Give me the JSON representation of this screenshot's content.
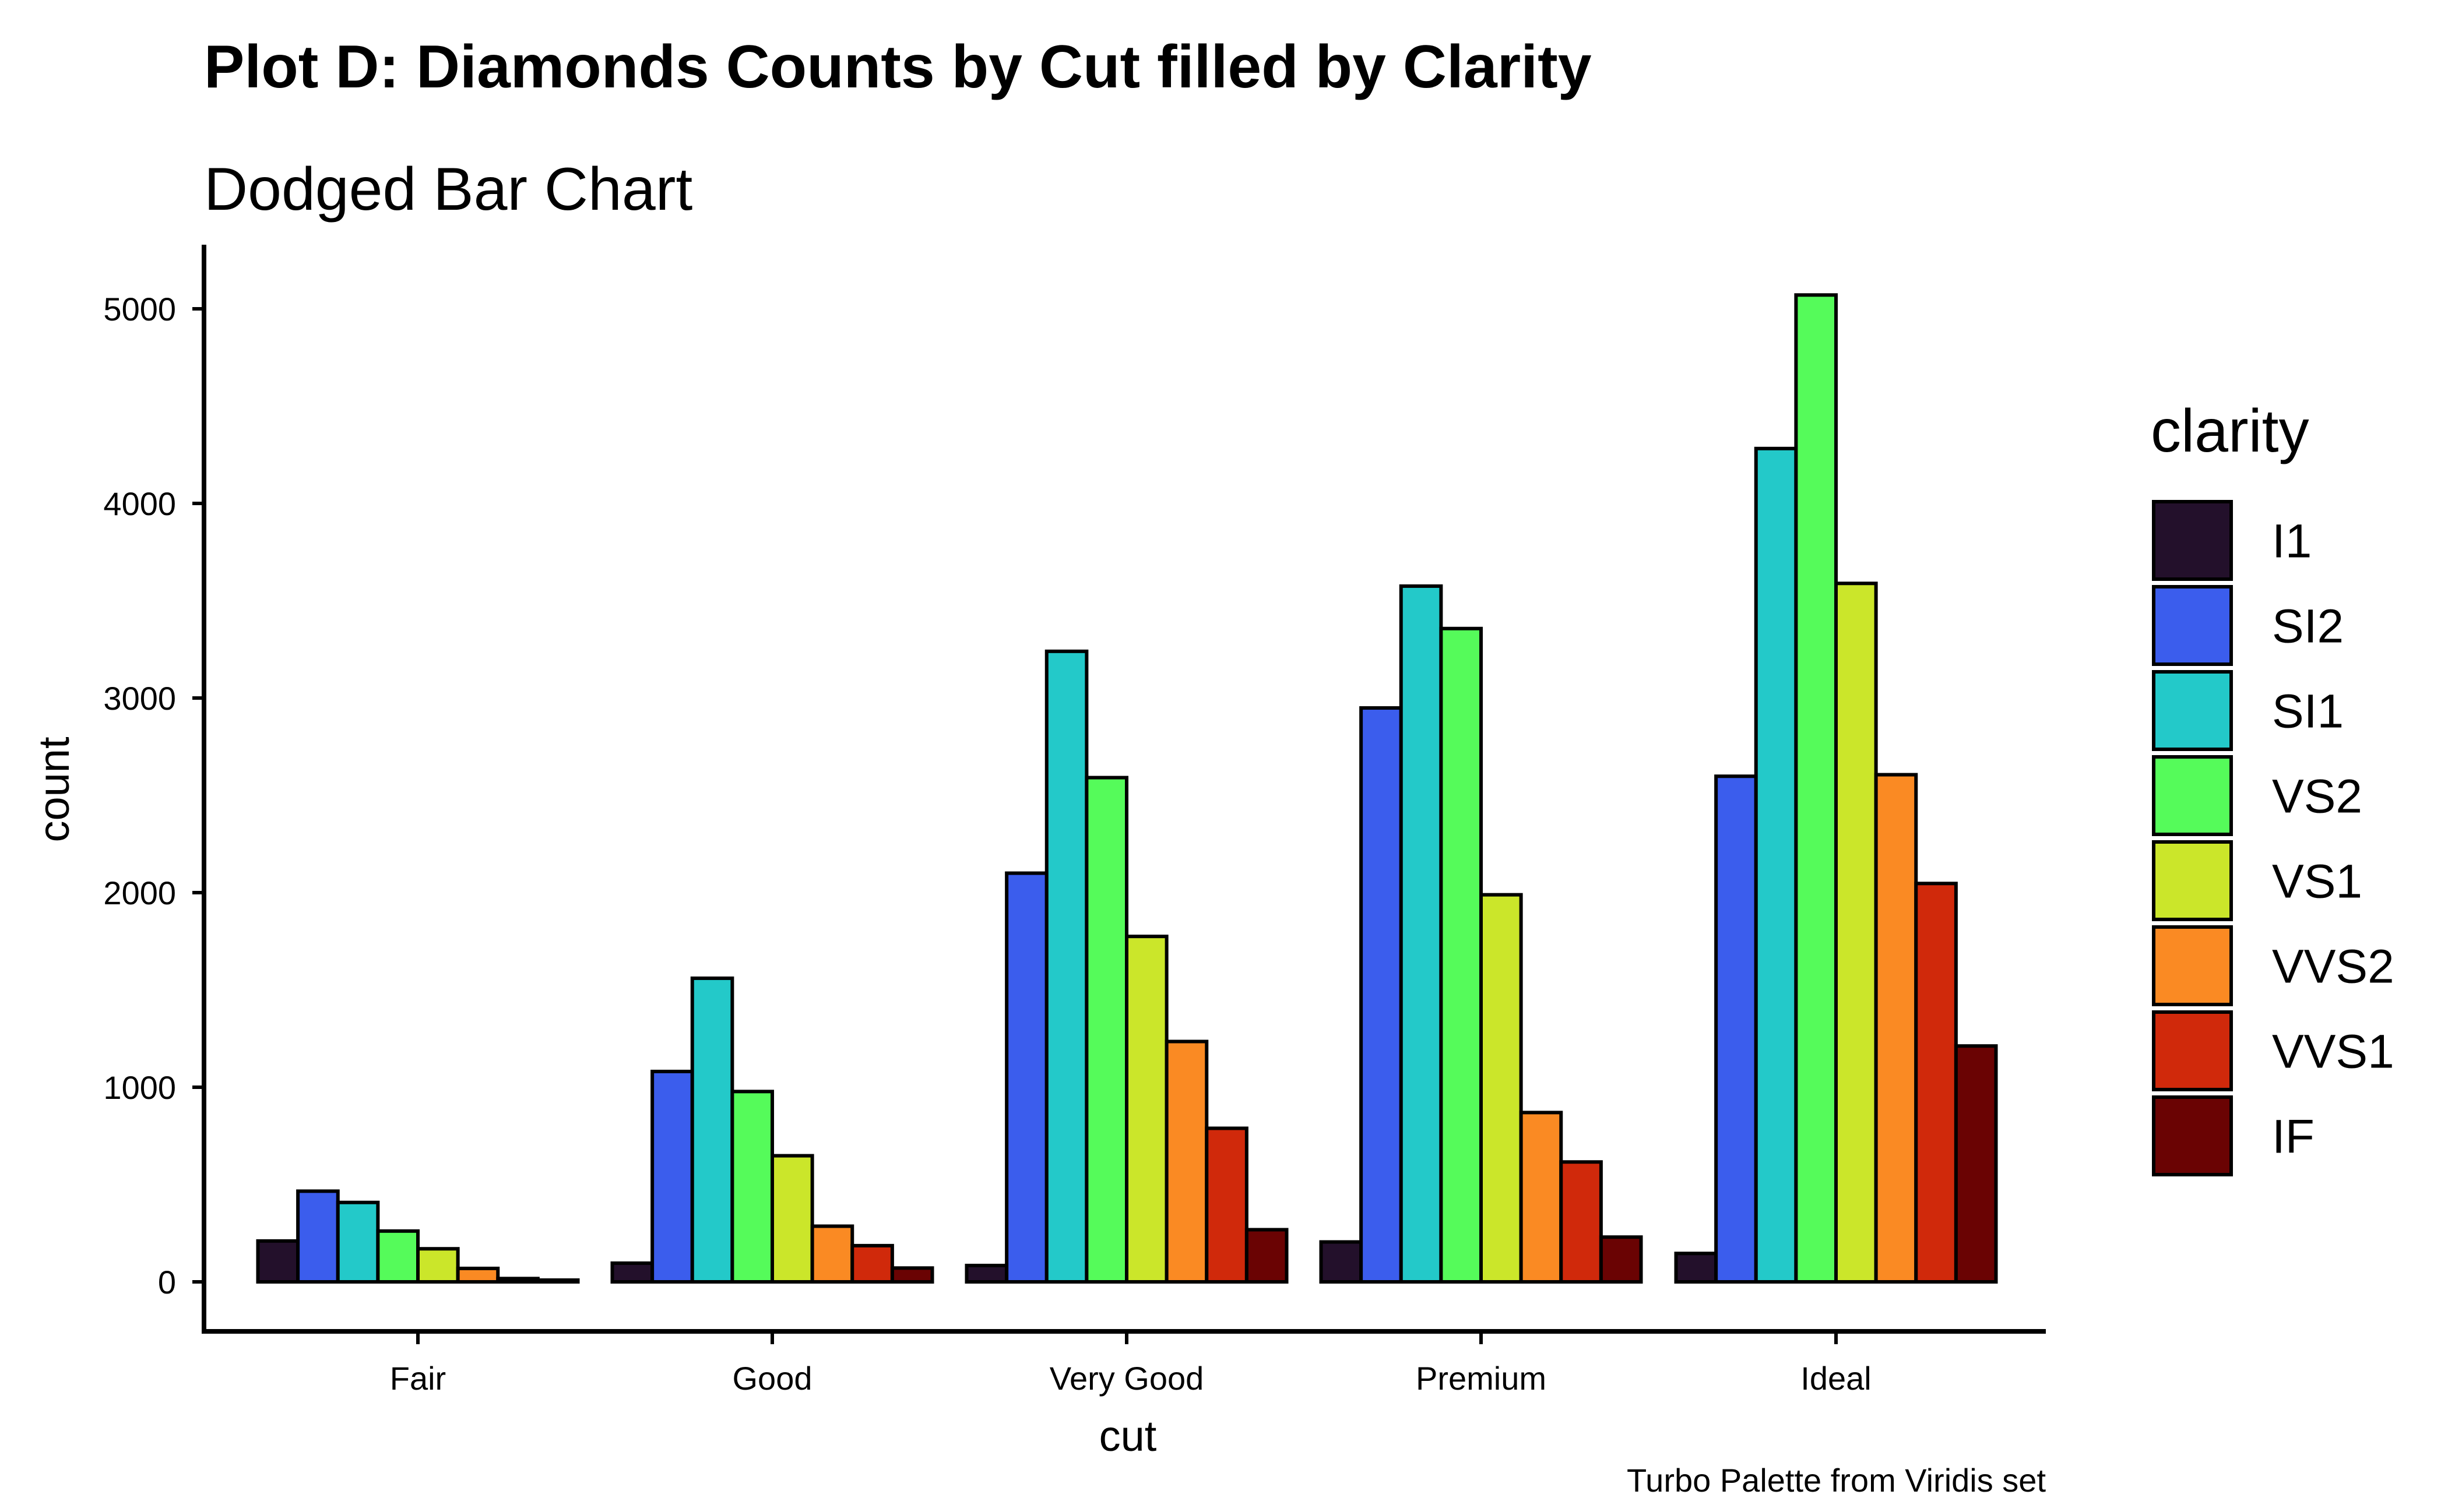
{
  "chart_data": {
    "type": "bar",
    "title": "Plot D: Diamonds Counts by Cut filled by Clarity",
    "subtitle": "Dodged Bar Chart",
    "xlabel": "cut",
    "ylabel": "count",
    "caption": "Turbo Palette from Viridis set",
    "legend_title": "clarity",
    "legend_position": "right",
    "grid": false,
    "ylim": [
      -250,
      5300
    ],
    "y_ticks": [
      0,
      1000,
      2000,
      3000,
      4000,
      5000
    ],
    "categories": [
      "Fair",
      "Good",
      "Very Good",
      "Premium",
      "Ideal"
    ],
    "series": [
      {
        "name": "I1",
        "color": "#23102b",
        "values": [
          210,
          96,
          84,
          205,
          146
        ]
      },
      {
        "name": "SI2",
        "color": "#3b5ded",
        "values": [
          466,
          1081,
          2100,
          2949,
          2598
        ]
      },
      {
        "name": "SI1",
        "color": "#23c9c9",
        "values": [
          408,
          1560,
          3240,
          3575,
          4282
        ]
      },
      {
        "name": "VS2",
        "color": "#55fb5a",
        "values": [
          261,
          978,
          2591,
          3357,
          5071
        ]
      },
      {
        "name": "VS1",
        "color": "#cbe62a",
        "values": [
          170,
          648,
          1775,
          1989,
          3589
        ]
      },
      {
        "name": "VVS2",
        "color": "#fa8a23",
        "values": [
          69,
          286,
          1235,
          870,
          2606
        ]
      },
      {
        "name": "VVS1",
        "color": "#d0290b",
        "values": [
          17,
          186,
          789,
          616,
          2047
        ]
      },
      {
        "name": "IF",
        "color": "#6a0303",
        "values": [
          9,
          71,
          268,
          230,
          1212
        ]
      }
    ]
  }
}
